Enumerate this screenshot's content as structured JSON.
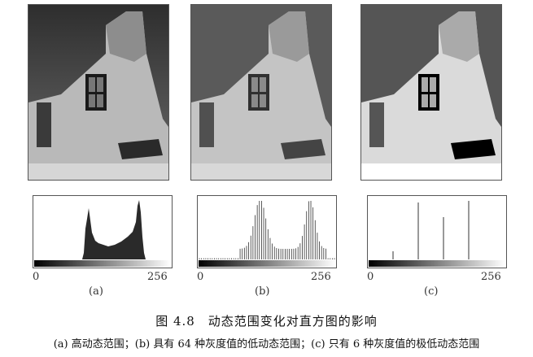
{
  "figure": {
    "title": "图 4.8　动态范围变化对直方图的影响",
    "subtitle": "(a) 高动态范围；(b) 具有 64 种灰度值的低动态范围；(c) 只有 6 种灰度值的极低动态范围"
  },
  "panels": [
    {
      "label": "(a)",
      "axis_min": "0",
      "axis_max": "256",
      "variant": "continuous"
    },
    {
      "label": "(b)",
      "axis_min": "0",
      "axis_max": "256",
      "variant": "lines64"
    },
    {
      "label": "(c)",
      "axis_min": "0",
      "axis_max": "256",
      "variant": "lines6"
    }
  ]
}
